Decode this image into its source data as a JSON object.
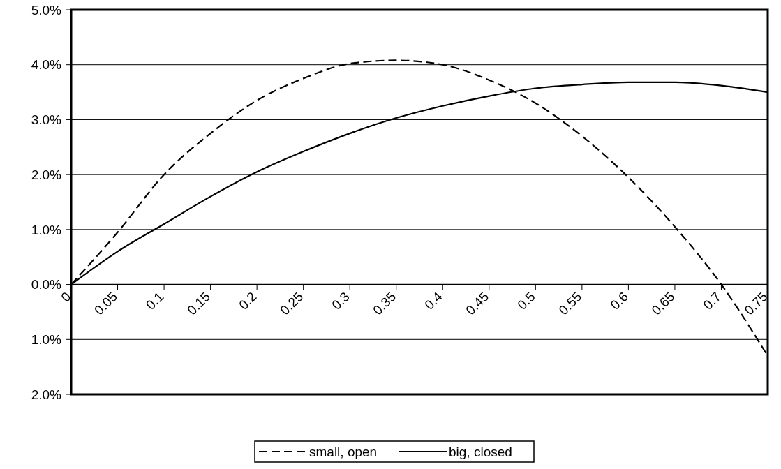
{
  "chart_data": {
    "type": "line",
    "x": [
      0,
      0.05,
      0.1,
      0.15,
      0.2,
      0.25,
      0.3,
      0.35,
      0.4,
      0.45,
      0.5,
      0.55,
      0.6,
      0.65,
      0.7,
      0.75
    ],
    "series": [
      {
        "name": "small, open",
        "color": "#000000",
        "line_style": "dashed",
        "values": [
          0,
          0.95,
          2.0,
          2.75,
          3.35,
          3.75,
          4.02,
          4.08,
          4.0,
          3.72,
          3.3,
          2.7,
          1.95,
          1.05,
          0.0,
          -1.3
        ]
      },
      {
        "name": "big, closed",
        "color": "#000000",
        "line_style": "solid",
        "values": [
          0,
          0.6,
          1.1,
          1.6,
          2.05,
          2.42,
          2.75,
          3.03,
          3.25,
          3.43,
          3.57,
          3.64,
          3.68,
          3.68,
          3.62,
          3.5
        ]
      }
    ],
    "xlim": [
      0,
      0.75
    ],
    "xticks": [
      0,
      0.05,
      0.1,
      0.15,
      0.2,
      0.25,
      0.3,
      0.35,
      0.4,
      0.45,
      0.5,
      0.55,
      0.6,
      0.65,
      0.7,
      0.75
    ],
    "ylim": [
      -2,
      5
    ],
    "yticks": [
      {
        "value": -2,
        "label": "2.0%"
      },
      {
        "value": -1,
        "label": "1.0%"
      },
      {
        "value": 0,
        "label": "0.0%"
      },
      {
        "value": 1,
        "label": "1.0%"
      },
      {
        "value": 2,
        "label": "2.0%"
      },
      {
        "value": 3,
        "label": "3.0%"
      },
      {
        "value": 4,
        "label": "4.0%"
      },
      {
        "value": 5,
        "label": "5.0%"
      }
    ],
    "grid": "y",
    "legend": "bottom"
  }
}
